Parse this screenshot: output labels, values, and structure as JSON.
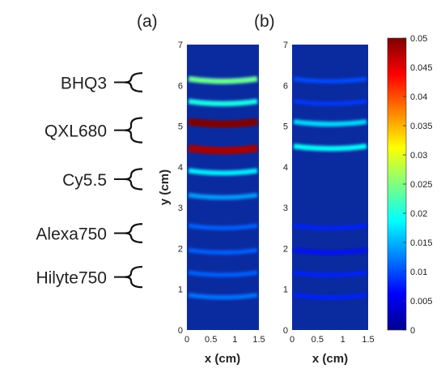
{
  "chart_data": [
    {
      "type": "heatmap",
      "panel_label": "(a)",
      "xlabel": "x (cm)",
      "ylabel": "y (cm)",
      "xlim": [
        0,
        1.5
      ],
      "ylim": [
        0,
        7
      ],
      "x_ticks": [
        "0",
        "0.5",
        "1",
        "1.5"
      ],
      "y_ticks": [
        "0",
        "1",
        "2",
        "3",
        "4",
        "5",
        "6",
        "7"
      ],
      "stripes": [
        {
          "y": 0.8,
          "value": 0.012
        },
        {
          "y": 1.35,
          "value": 0.011
        },
        {
          "y": 1.9,
          "value": 0.011
        },
        {
          "y": 2.5,
          "value": 0.011
        },
        {
          "y": 3.25,
          "value": 0.014
        },
        {
          "y": 3.85,
          "value": 0.018
        },
        {
          "y": 4.4,
          "value": 0.048
        },
        {
          "y": 5.05,
          "value": 0.05
        },
        {
          "y": 5.55,
          "value": 0.02
        },
        {
          "y": 6.1,
          "value": 0.024
        }
      ],
      "groups": [
        {
          "label": "BHQ3",
          "y_range": [
            5.85,
            6.3
          ]
        },
        {
          "label": "QXL680",
          "y_range": [
            4.6,
            5.2
          ]
        },
        {
          "label": "Cy5.5",
          "y_range": [
            3.45,
            3.95
          ]
        },
        {
          "label": "Alexa750",
          "y_range": [
            2.15,
            2.6
          ]
        },
        {
          "label": "Hilyte750",
          "y_range": [
            1.05,
            1.55
          ]
        }
      ]
    },
    {
      "type": "heatmap",
      "panel_label": "(b)",
      "xlabel": "x (cm)",
      "ylabel": "",
      "xlim": [
        0,
        1.5
      ],
      "ylim": [
        0,
        7
      ],
      "x_ticks": [
        "0",
        "0.5",
        "1",
        "1.5"
      ],
      "y_ticks": [
        "0",
        "1",
        "2",
        "3",
        "4",
        "5",
        "6",
        "7"
      ],
      "stripes": [
        {
          "y": 0.8,
          "value": 0.008
        },
        {
          "y": 1.35,
          "value": 0.008
        },
        {
          "y": 1.9,
          "value": 0.007
        },
        {
          "y": 2.5,
          "value": 0.008
        },
        {
          "y": 4.45,
          "value": 0.019
        },
        {
          "y": 5.05,
          "value": 0.017
        },
        {
          "y": 5.55,
          "value": 0.009
        },
        {
          "y": 6.1,
          "value": 0.01
        }
      ]
    }
  ],
  "colorbar": {
    "min": 0,
    "max": 0.05,
    "tick_labels": [
      "0.05",
      "0.045",
      "0.04",
      "0.035",
      "0.03",
      "0.025",
      "0.02",
      "0.015",
      "0.01",
      "0.005",
      "0"
    ],
    "tick_values": [
      0.05,
      0.045,
      0.04,
      0.035,
      0.03,
      0.025,
      0.02,
      0.015,
      0.01,
      0.005,
      0
    ]
  },
  "colors": {
    "background_field": "#0a2aa0",
    "colormap": "jet"
  }
}
